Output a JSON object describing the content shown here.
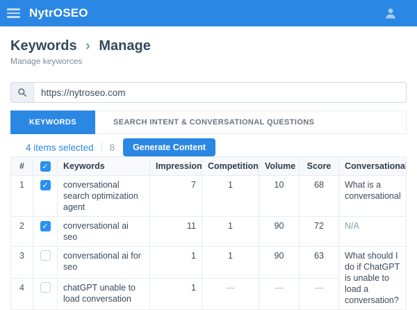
{
  "header": {
    "title": "NytrOSEO"
  },
  "breadcrumb": {
    "section": "Keywords",
    "separator": "›",
    "page": "Manage",
    "subtitle": "Manage keyworces"
  },
  "search": {
    "value": "https://nytroseo.com"
  },
  "tabs": [
    {
      "label": "KEYWORDS",
      "active": true
    },
    {
      "label": "SEARCH INTENT & CONVERSATIONAL QUESTIONS",
      "active": false
    }
  ],
  "toolbar": {
    "selection_text": "4 items selected",
    "count": "8",
    "generate_button": "Generate Content"
  },
  "table": {
    "columns": [
      "#",
      "Keywords",
      "Impressions",
      "Competition",
      "Volume",
      "Score",
      "Conversational Q"
    ],
    "rows": [
      {
        "num": "1",
        "checked": true,
        "keyword": "conversational search optimization agent",
        "impressions": "7",
        "competition": "1",
        "volume": "10",
        "score": "68",
        "question": "What is a conversational"
      },
      {
        "num": "2",
        "checked": true,
        "keyword": "conversational ai seo",
        "impressions": "11",
        "competition": "1",
        "volume": "90",
        "score": "72",
        "question": "N/A",
        "question_muted": true
      },
      {
        "num": "3",
        "checked": false,
        "keyword": "conversational ai for seo",
        "impressions": "1",
        "competition": "1",
        "volume": "90",
        "score": "63",
        "question": "What should I do if ChatGPT is unable to load a conversation?",
        "question_rowspan": 2
      },
      {
        "num": "4",
        "checked": false,
        "keyword": "chatGPT unable to load conversation",
        "impressions": "1",
        "competition": "—",
        "volume": "—",
        "score": "—"
      }
    ]
  },
  "icons": {
    "check": "✓",
    "menu": "hamburger-bars",
    "user": "person-silhouette",
    "search": "magnifier"
  },
  "colors": {
    "accent_blue": "#2b87e4",
    "checkbox_blue": "#2a91ef",
    "dark_text": "#34495e",
    "muted_text": "#8ba0b2",
    "border": "#e4ecf3"
  }
}
